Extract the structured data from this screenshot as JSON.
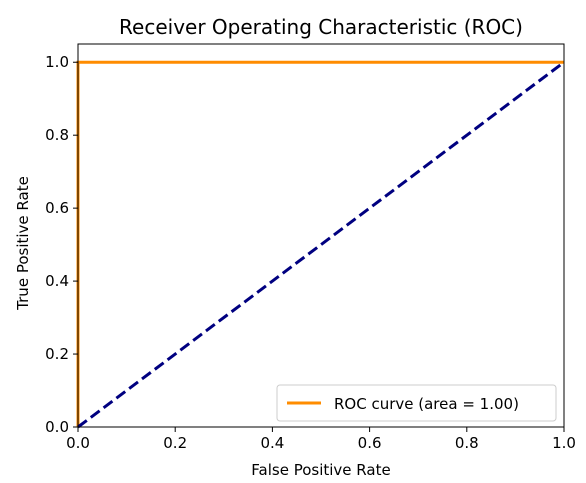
{
  "chart_data": {
    "type": "line",
    "title": "Receiver Operating Characteristic (ROC)",
    "xlabel": "False Positive Rate",
    "ylabel": "True Positive Rate",
    "xlim": [
      0.0,
      1.0
    ],
    "ylim": [
      0.0,
      1.05
    ],
    "xticks": [
      "0.0",
      "0.2",
      "0.4",
      "0.6",
      "0.8",
      "1.0"
    ],
    "yticks": [
      "0.0",
      "0.2",
      "0.4",
      "0.6",
      "0.8",
      "1.0"
    ],
    "grid": false,
    "legend_position": "lower-right",
    "series": [
      {
        "name": "ROC curve (area = 1.00)",
        "style": "solid",
        "color": "#ff8c00",
        "x": [
          0.0,
          0.0,
          1.0
        ],
        "y": [
          0.0,
          1.0,
          1.0
        ]
      },
      {
        "style": "dashed",
        "color": "#000080",
        "x": [
          0.0,
          1.0
        ],
        "y": [
          0.0,
          1.0
        ]
      }
    ]
  }
}
